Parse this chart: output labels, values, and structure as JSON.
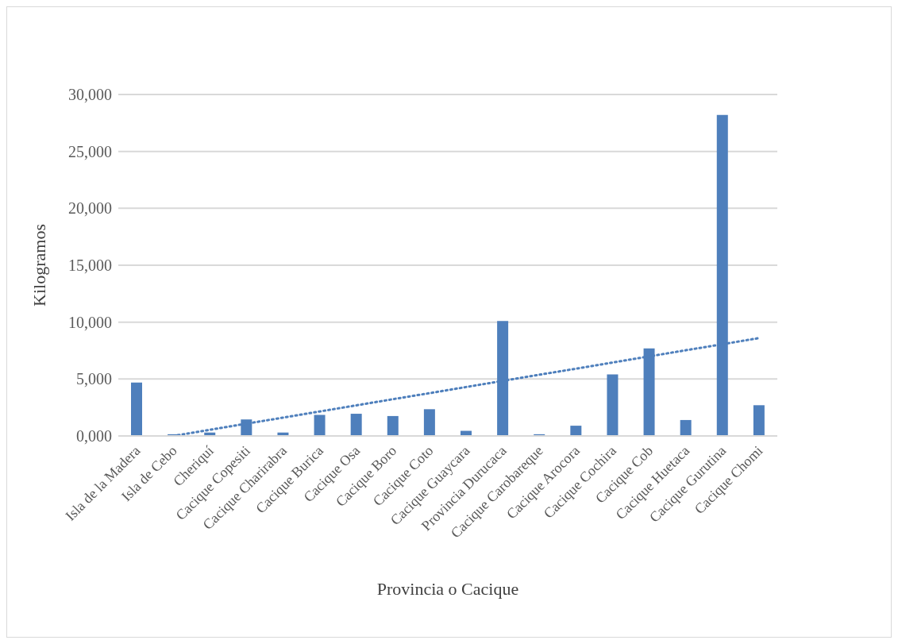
{
  "chart_data": {
    "type": "bar",
    "xlabel": "Provincia o Cacique",
    "ylabel": "Kilogramos",
    "categories": [
      "Isla de la Madera",
      "Isla de Cebo",
      "Cheriquí",
      "Cacique Copesiti",
      "Cacique Charirabra",
      "Cacique Burica",
      "Cacique Osa",
      "Cacique Boro",
      "Cacique Coto",
      "Cacique Guaycara",
      "Provincia Durucaca",
      "Cacique Carobareque",
      "Cacique Arocora",
      "Cacique Cochira",
      "Cacique Cob",
      "Cacique Huetaca",
      "Cacique Gurutina",
      "Cacique Chomi"
    ],
    "series": [
      {
        "color": "#4e7fbc",
        "values": [
          4700,
          150,
          300,
          1450,
          300,
          1850,
          1950,
          1750,
          2350,
          450,
          10100,
          150,
          900,
          5400,
          7700,
          1400,
          28200,
          2700
        ]
      },
      {
        "type": "line",
        "color": "#4e7fbc",
        "line_style": "dotted",
        "marker": "none",
        "values": [
          null,
          0,
          540,
          1080,
          1610,
          2150,
          2690,
          3230,
          3760,
          4300,
          4840,
          5380,
          5910,
          6450,
          6990,
          7530,
          8060,
          8600
        ]
      }
    ],
    "ylim": [
      0,
      30000
    ],
    "yticks": [
      {
        "value": 0,
        "label": "0,000"
      },
      {
        "value": 5000,
        "label": "5,000"
      },
      {
        "value": 10000,
        "label": "10,000"
      },
      {
        "value": 15000,
        "label": "15,000"
      },
      {
        "value": 20000,
        "label": "20,000"
      },
      {
        "value": 25000,
        "label": "25,000"
      },
      {
        "value": 30000,
        "label": "30,000"
      }
    ],
    "grid": "y",
    "legend": false
  }
}
